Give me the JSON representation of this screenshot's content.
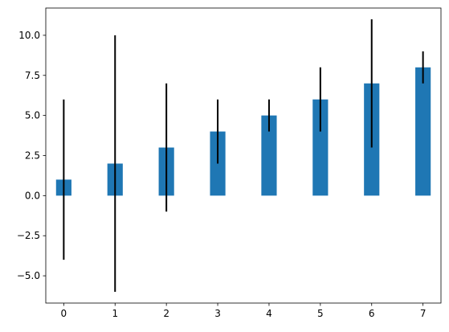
{
  "chart_data": {
    "type": "bar",
    "categories": [
      "0",
      "1",
      "2",
      "3",
      "4",
      "5",
      "6",
      "7"
    ],
    "x": [
      0,
      1,
      2,
      3,
      4,
      5,
      6,
      7
    ],
    "values": [
      1,
      2,
      3,
      4,
      5,
      6,
      7,
      8
    ],
    "error_lower": [
      5,
      8,
      4,
      2,
      1,
      2,
      4,
      1
    ],
    "error_upper": [
      5,
      8,
      4,
      2,
      1,
      2,
      4,
      1
    ],
    "xlim": [
      -0.35,
      7.35
    ],
    "ylim": [
      -6.7,
      11.7
    ],
    "yticks": [
      -5.0,
      -2.5,
      0.0,
      2.5,
      5.0,
      7.5,
      10.0
    ],
    "ytick_labels": [
      "−5.0",
      "−2.5",
      "0.0",
      "2.5",
      "5.0",
      "7.5",
      "10.0"
    ],
    "xticks": [
      0,
      1,
      2,
      3,
      4,
      5,
      6,
      7
    ],
    "xtick_labels": [
      "0",
      "1",
      "2",
      "3",
      "4",
      "5",
      "6",
      "7"
    ],
    "bar_width": 0.3,
    "title": "",
    "xlabel": "",
    "ylabel": "",
    "grid": false,
    "colors": {
      "bar": "#1f77b4",
      "error": "#000000",
      "axes": "#000000"
    }
  }
}
